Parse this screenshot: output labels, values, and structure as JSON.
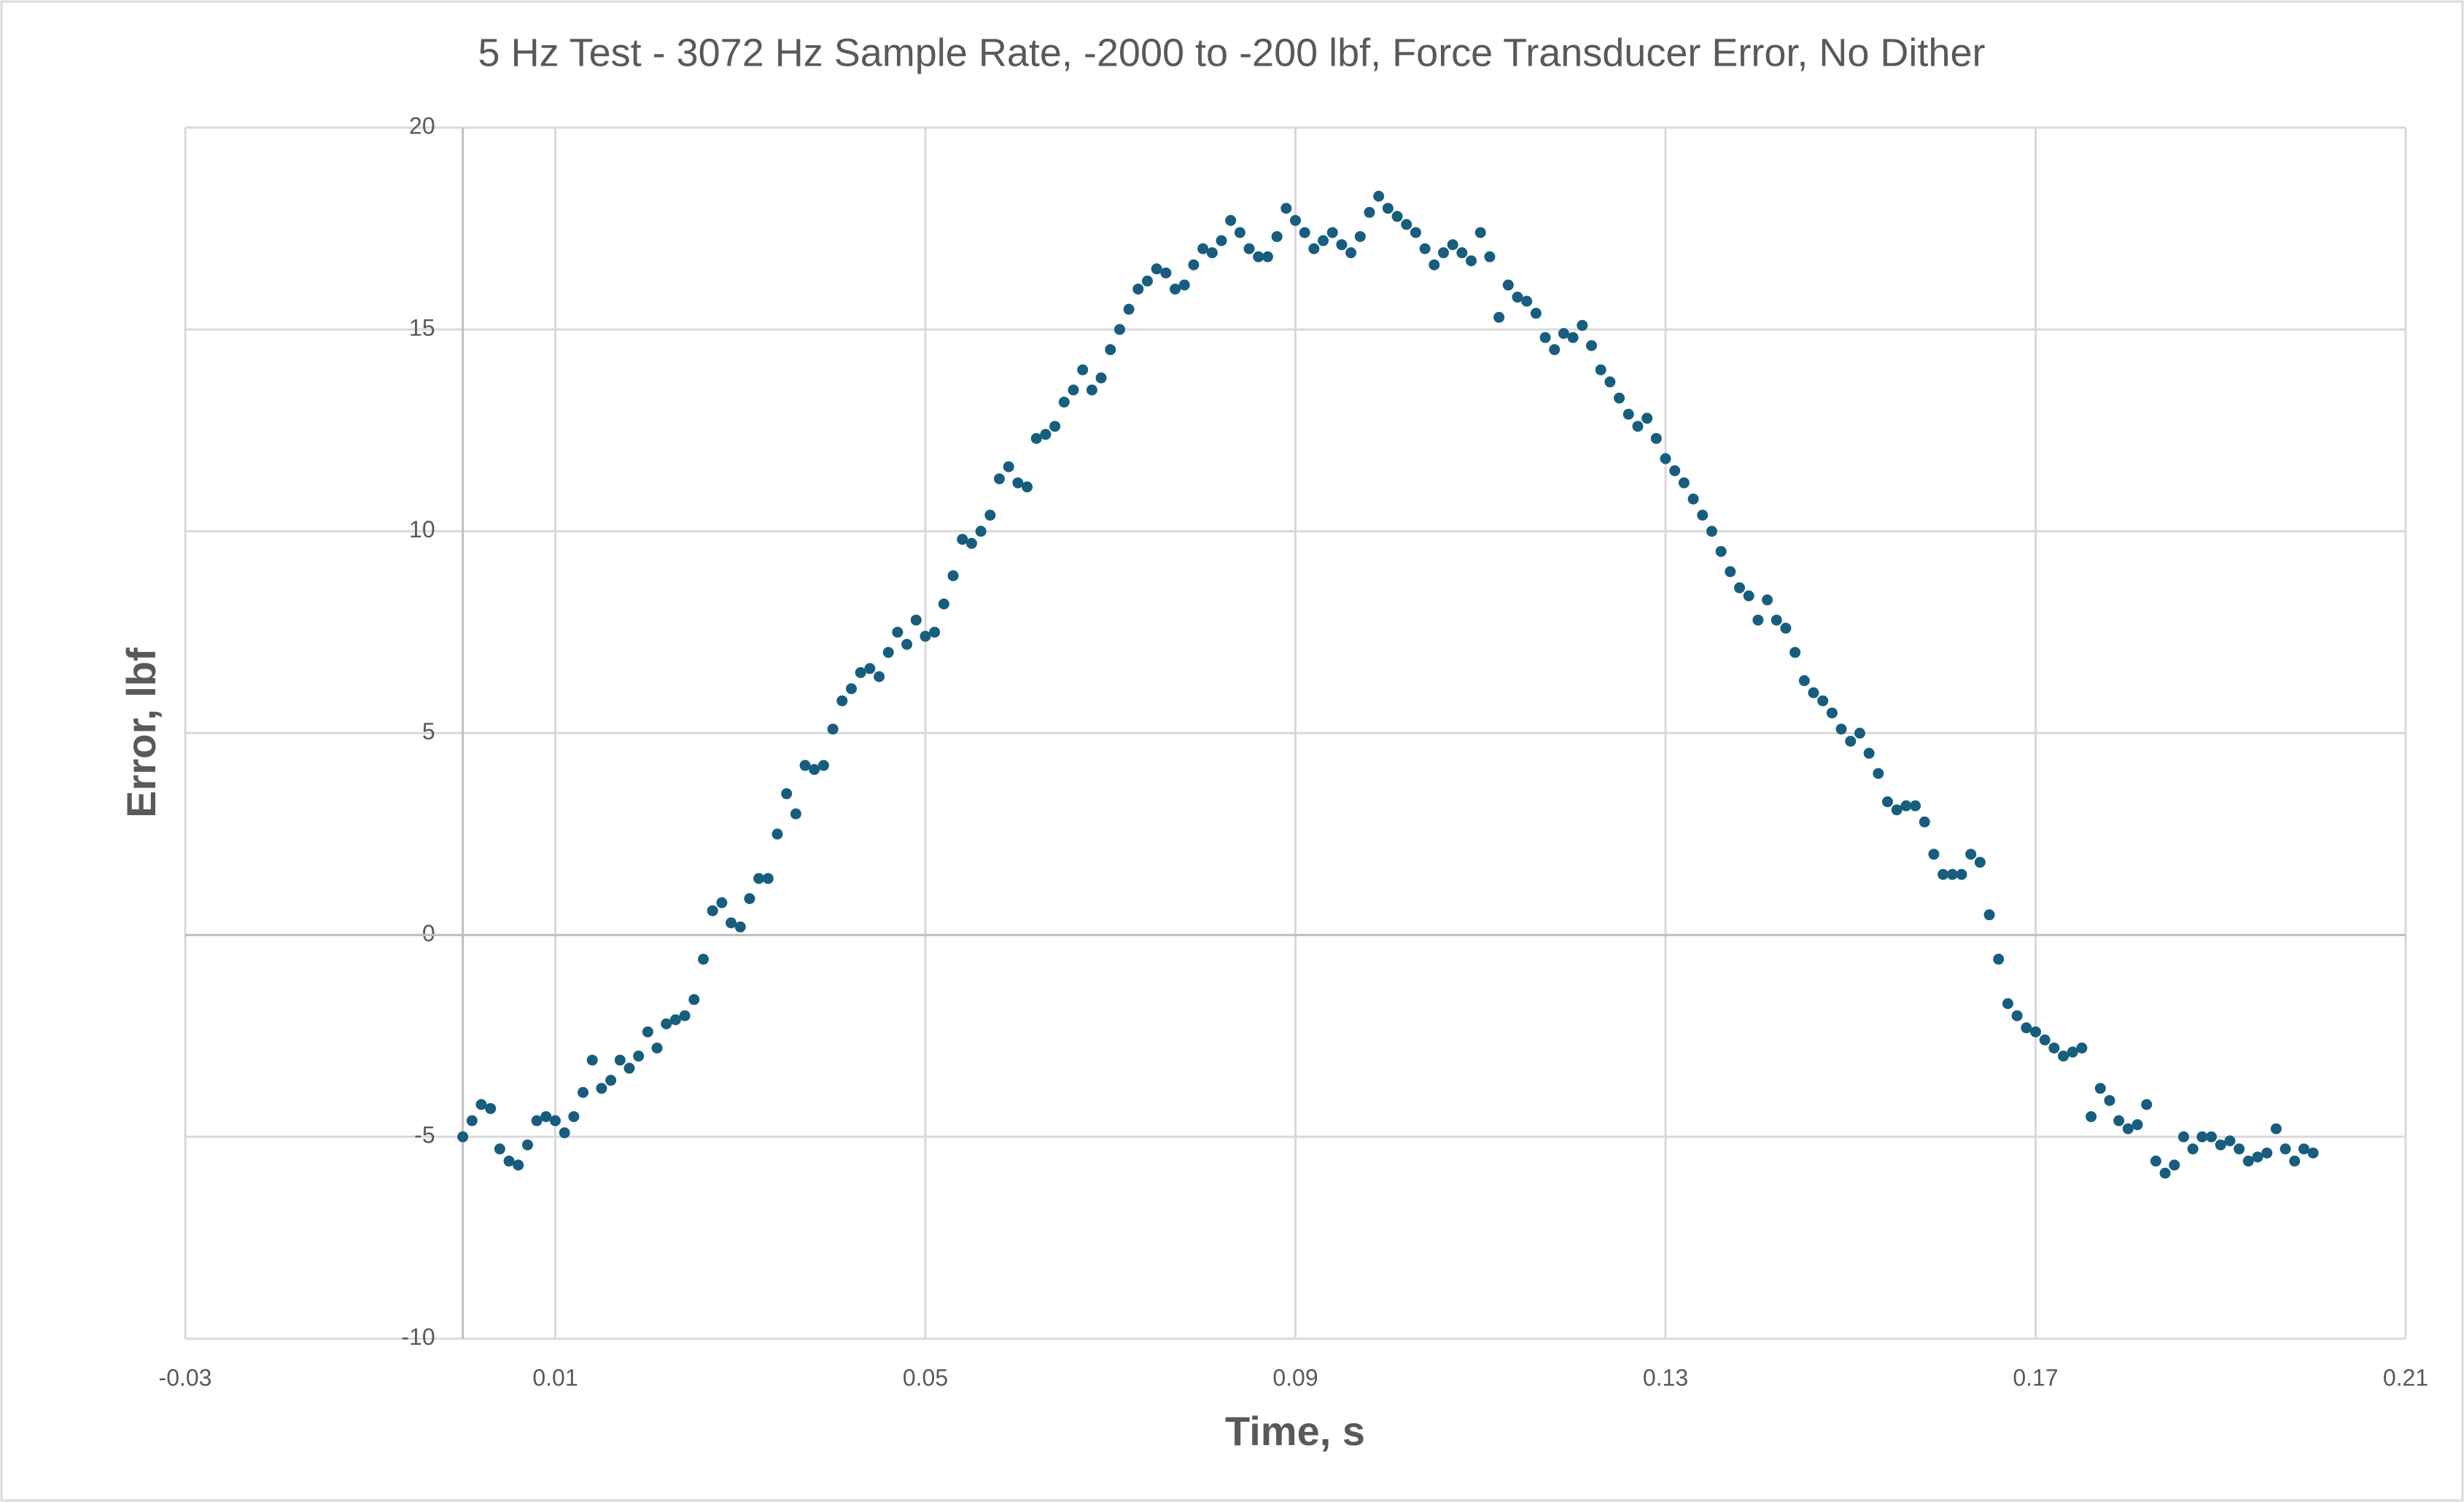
{
  "chart_data": {
    "type": "scatter",
    "title": "5 Hz Test - 3072 Hz Sample Rate, -2000 to -200 lbf, Force Transducer Error, No Dither",
    "x_label": "Time, s",
    "y_label": "Error, lbf",
    "xlim": [
      -0.03,
      0.21
    ],
    "xticks": [
      -0.03,
      0.01,
      0.05,
      0.09,
      0.13,
      0.17,
      0.21
    ],
    "ylim": [
      -10,
      20
    ],
    "yticks": [
      -10,
      -5,
      0,
      5,
      10,
      15,
      20
    ],
    "grid": true,
    "series": [
      {
        "name": "Error",
        "color": "#175e7e",
        "x": [
          0,
          0.001,
          0.002,
          0.003,
          0.004,
          0.005,
          0.006,
          0.007,
          0.008,
          0.009,
          0.01,
          0.011,
          0.012,
          0.013,
          0.014,
          0.015,
          0.016,
          0.017,
          0.018,
          0.019,
          0.02,
          0.021,
          0.022,
          0.023,
          0.024,
          0.025,
          0.026,
          0.027,
          0.028,
          0.029,
          0.03,
          0.031,
          0.032,
          0.033,
          0.034,
          0.035,
          0.036,
          0.037,
          0.038,
          0.039,
          0.04,
          0.041,
          0.042,
          0.043,
          0.044,
          0.045,
          0.046,
          0.047,
          0.048,
          0.049,
          0.05,
          0.051,
          0.052,
          0.053,
          0.054,
          0.055,
          0.056,
          0.057,
          0.058,
          0.059,
          0.06,
          0.061,
          0.062,
          0.063,
          0.064,
          0.065,
          0.066,
          0.067,
          0.068,
          0.069,
          0.07,
          0.071,
          0.072,
          0.073,
          0.074,
          0.075,
          0.076,
          0.077,
          0.078,
          0.079,
          0.08,
          0.081,
          0.082,
          0.083,
          0.084,
          0.085,
          0.086,
          0.087,
          0.088,
          0.089,
          0.09,
          0.091,
          0.092,
          0.093,
          0.094,
          0.095,
          0.096,
          0.097,
          0.098,
          0.099,
          0.1,
          0.101,
          0.102,
          0.103,
          0.104,
          0.105,
          0.106,
          0.107,
          0.108,
          0.109,
          0.11,
          0.111,
          0.112,
          0.113,
          0.114,
          0.115,
          0.116,
          0.117,
          0.118,
          0.119,
          0.12,
          0.121,
          0.122,
          0.123,
          0.124,
          0.125,
          0.126,
          0.127,
          0.128,
          0.129,
          0.13,
          0.131,
          0.132,
          0.133,
          0.134,
          0.135,
          0.136,
          0.137,
          0.138,
          0.139,
          0.14,
          0.141,
          0.142,
          0.143,
          0.144,
          0.145,
          0.146,
          0.147,
          0.148,
          0.149,
          0.15,
          0.151,
          0.152,
          0.153,
          0.154,
          0.155,
          0.156,
          0.157,
          0.158,
          0.159,
          0.16,
          0.161,
          0.162,
          0.163,
          0.164,
          0.165,
          0.166,
          0.167,
          0.168,
          0.169,
          0.17,
          0.171,
          0.172,
          0.173,
          0.174,
          0.175,
          0.176,
          0.177,
          0.178,
          0.179,
          0.18,
          0.181,
          0.182,
          0.183,
          0.184,
          0.185,
          0.186,
          0.187,
          0.188,
          0.189,
          0.19,
          0.191,
          0.192,
          0.193,
          0.194,
          0.195,
          0.196,
          0.197,
          0.198,
          0.199,
          0.2
        ],
        "values": [
          -5.0,
          -4.6,
          -4.2,
          -4.3,
          -5.3,
          -5.6,
          -5.7,
          -5.2,
          -4.6,
          -4.5,
          -4.6,
          -4.9,
          -4.5,
          -3.9,
          -3.1,
          -3.8,
          -3.6,
          -3.1,
          -3.3,
          -3.0,
          -2.4,
          -2.8,
          -2.2,
          -2.1,
          -2.0,
          -1.6,
          -0.6,
          0.6,
          0.8,
          0.3,
          0.2,
          0.9,
          1.4,
          1.4,
          2.5,
          3.5,
          3.0,
          4.2,
          4.1,
          4.2,
          5.1,
          5.8,
          6.1,
          6.5,
          6.6,
          6.4,
          7.0,
          7.5,
          7.2,
          7.8,
          7.4,
          7.5,
          8.2,
          8.9,
          9.8,
          9.7,
          10.0,
          10.4,
          11.3,
          11.6,
          11.2,
          11.1,
          12.3,
          12.4,
          12.6,
          13.2,
          13.5,
          14.0,
          13.5,
          13.8,
          14.5,
          15.0,
          15.5,
          16.0,
          16.2,
          16.5,
          16.4,
          16.0,
          16.1,
          16.6,
          17.0,
          16.9,
          17.2,
          17.7,
          17.4,
          17.0,
          16.8,
          16.8,
          17.3,
          18.0,
          17.7,
          17.4,
          17.0,
          17.2,
          17.4,
          17.1,
          16.9,
          17.3,
          17.9,
          18.3,
          18.0,
          17.8,
          17.6,
          17.4,
          17.0,
          16.6,
          16.9,
          17.1,
          16.9,
          16.7,
          17.4,
          16.8,
          15.3,
          16.1,
          15.8,
          15.7,
          15.4,
          14.8,
          14.5,
          14.9,
          14.8,
          15.1,
          14.6,
          14.0,
          13.7,
          13.3,
          12.9,
          12.6,
          12.8,
          12.3,
          11.8,
          11.5,
          11.2,
          10.8,
          10.4,
          10.0,
          9.5,
          9.0,
          8.6,
          8.4,
          7.8,
          8.3,
          7.8,
          7.6,
          7.0,
          6.3,
          6.0,
          5.8,
          5.5,
          5.1,
          4.8,
          5.0,
          4.5,
          4.0,
          3.3,
          3.1,
          3.2,
          3.2,
          2.8,
          2.0,
          1.5,
          1.5,
          1.5,
          2.0,
          1.8,
          0.5,
          -0.6,
          -1.7,
          -2.0,
          -2.3,
          -2.4,
          -2.6,
          -2.8,
          -3.0,
          -2.9,
          -2.8,
          -4.5,
          -3.8,
          -4.1,
          -4.6,
          -4.8,
          -4.7,
          -4.2,
          -5.6,
          -5.9,
          -5.7,
          -5.0,
          -5.3,
          -5.0,
          -5.0,
          -5.2,
          -5.1,
          -5.3,
          -5.6,
          -5.5,
          -5.4,
          -4.8,
          -5.3,
          -5.6,
          -5.3,
          -5.4
        ]
      }
    ]
  }
}
